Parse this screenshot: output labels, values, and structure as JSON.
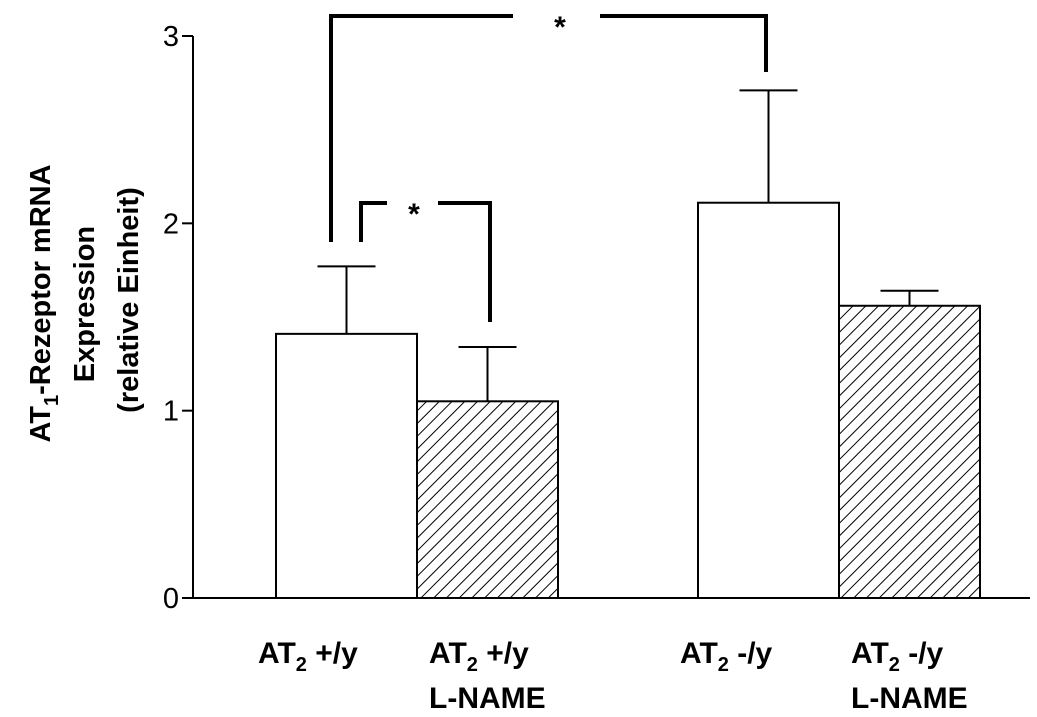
{
  "chart_data": {
    "type": "bar",
    "ylabel_lines": [
      {
        "main": "AT",
        "sub": "1",
        "rest": "-Rezeptor mRNA"
      },
      {
        "main": "Expression"
      },
      {
        "main": "(relative Einheit)"
      }
    ],
    "ylim": [
      0,
      3
    ],
    "yticks": [
      0,
      1,
      2,
      3
    ],
    "grid": false,
    "categories": [
      {
        "line1": {
          "pre": "AT",
          "sub": "2",
          "post": " +/y"
        },
        "line2": ""
      },
      {
        "line1": {
          "pre": "AT",
          "sub": "2",
          "post": "  +/y"
        },
        "line2": "L-NAME"
      },
      {
        "line1": {
          "pre": "AT",
          "sub": "2",
          "post": "  -/y"
        },
        "line2": ""
      },
      {
        "line1": {
          "pre": "AT",
          "sub": "2",
          "post": " -/y"
        },
        "line2": "L-NAME"
      }
    ],
    "values": [
      1.41,
      1.05,
      2.11,
      1.56
    ],
    "errors": [
      0.36,
      0.29,
      0.6,
      0.08
    ],
    "fills": [
      "open",
      "hatched",
      "open",
      "hatched"
    ],
    "significance": [
      {
        "from": 0,
        "to": 1,
        "label": "*"
      },
      {
        "from": 0,
        "to": 2,
        "label": "*"
      }
    ]
  }
}
